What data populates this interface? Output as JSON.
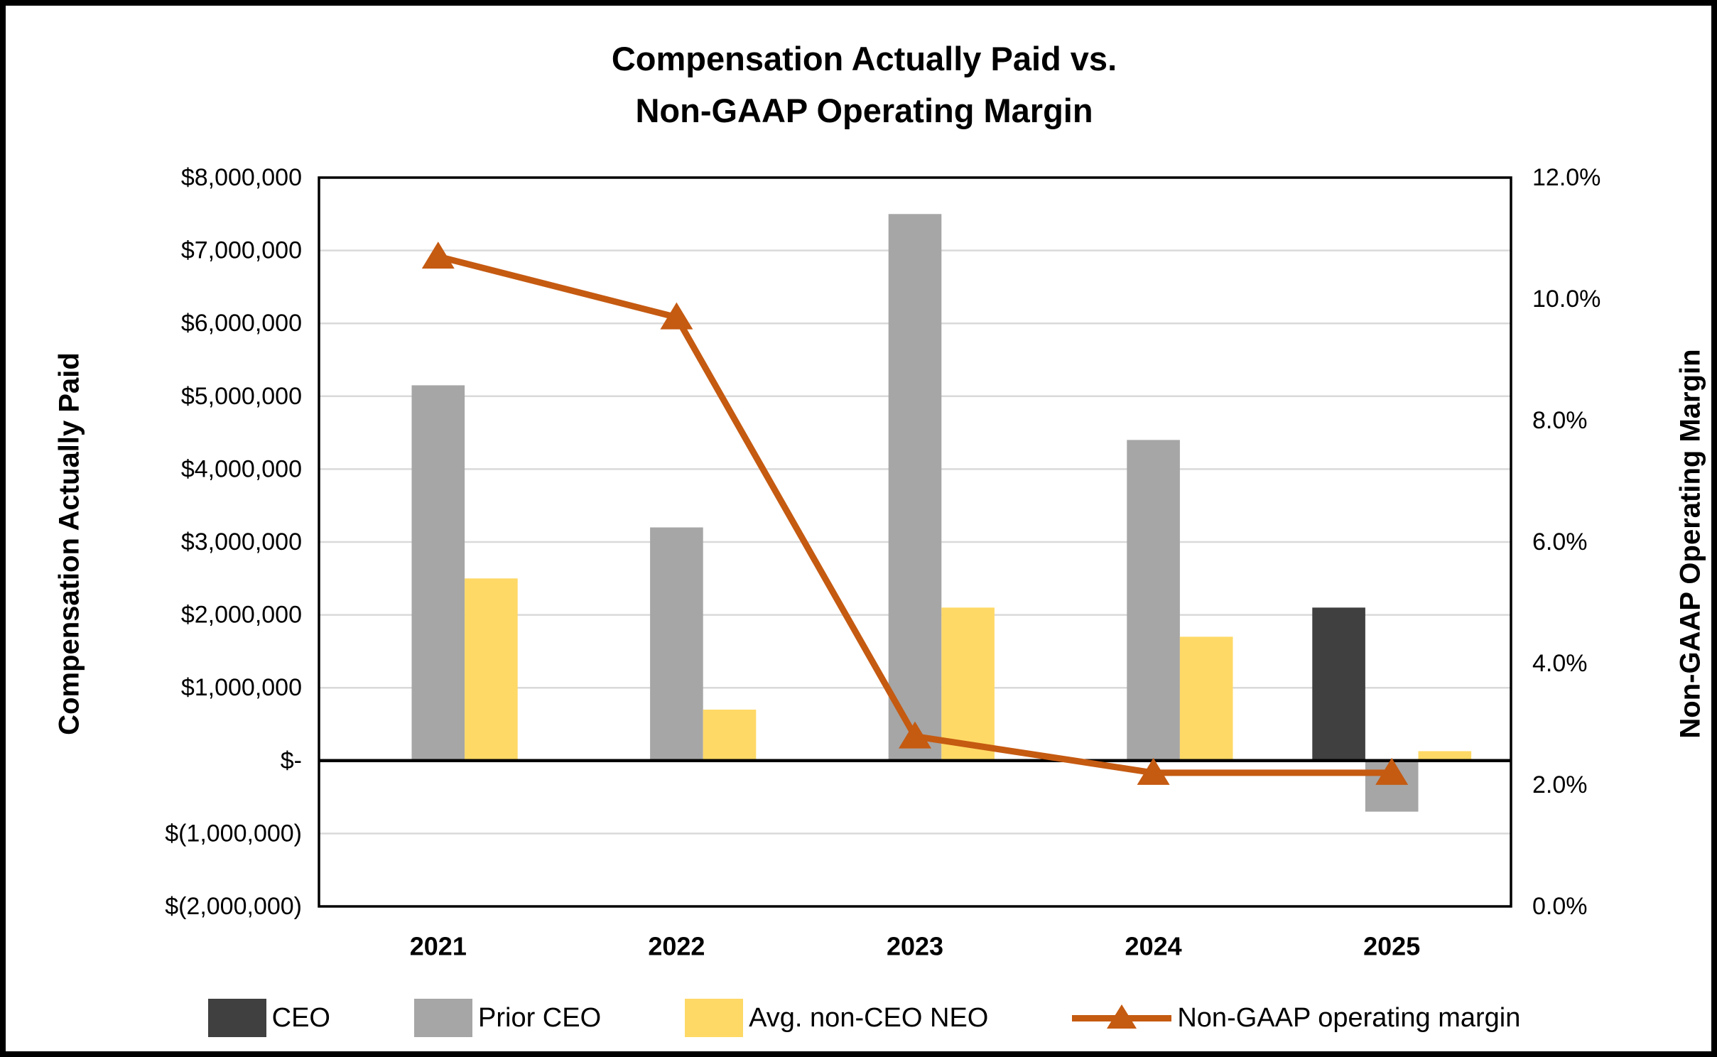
{
  "chart_data": {
    "type": "combo",
    "title_lines": [
      "Compensation Actually Paid vs.",
      "Non-GAAP Operating Margin"
    ],
    "categories": [
      "2021",
      "2022",
      "2023",
      "2024",
      "2025"
    ],
    "bar_series": [
      {
        "name": "CEO",
        "color": "#404040",
        "values_usd": [
          null,
          null,
          null,
          null,
          2100000
        ]
      },
      {
        "name": "Prior CEO",
        "color": "#A6A6A6",
        "values_usd": [
          5150000,
          3200000,
          7500000,
          4400000,
          -700000
        ]
      },
      {
        "name": "Avg. non-CEO NEO",
        "color": "#FFD966",
        "values_usd": [
          2500000,
          700000,
          2100000,
          1700000,
          130000
        ]
      }
    ],
    "line_series": {
      "name": "Non-GAAP operating margin",
      "color": "#C55A11",
      "values_pct": [
        10.7,
        9.7,
        2.8,
        2.2,
        2.2
      ]
    },
    "left_axis": {
      "title": "Compensation Actually Paid",
      "min_usd": -2000000,
      "max_usd": 8000000,
      "tick_labels": [
        "$8,000,000",
        "$7,000,000",
        "$6,000,000",
        "$5,000,000",
        "$4,000,000",
        "$3,000,000",
        "$2,000,000",
        "$1,000,000",
        "$-",
        "$(1,000,000)",
        "$(2,000,000)"
      ]
    },
    "right_axis": {
      "title": "Non-GAAP Operating Margin",
      "min_pct": 0,
      "max_pct": 12,
      "tick_labels": [
        "12.0%",
        "10.0%",
        "8.0%",
        "6.0%",
        "4.0%",
        "2.0%",
        "0.0%"
      ]
    },
    "grid": true,
    "legend_position": "bottom",
    "legend": {
      "items": [
        {
          "type": "rect",
          "color": "#404040",
          "label": "CEO"
        },
        {
          "type": "rect",
          "color": "#A6A6A6",
          "label": "Prior CEO"
        },
        {
          "type": "rect",
          "color": "#FFD966",
          "label": "Avg. non-CEO NEO"
        },
        {
          "type": "line-triangle",
          "color": "#C55A11",
          "label": "Non-GAAP operating margin"
        }
      ]
    },
    "colors": {
      "gridline": "#D9D9D9",
      "plot_border": "#000000",
      "zero_line": "#000000",
      "background": "#FFFFFF"
    }
  }
}
